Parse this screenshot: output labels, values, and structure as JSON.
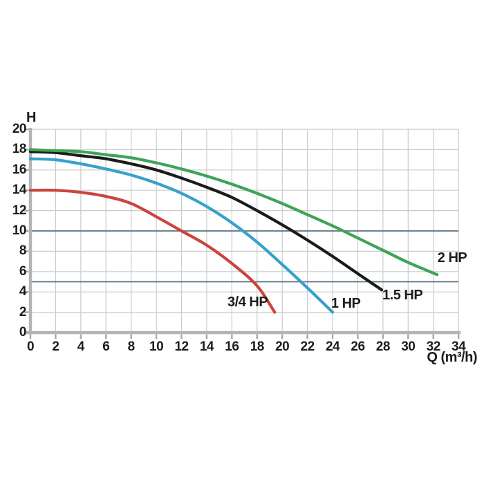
{
  "chart_data": {
    "type": "line",
    "x_axis": {
      "label": "Q (m³/h)",
      "min": 0,
      "max": 34,
      "tick_step": 2,
      "tick_labels": [
        "0",
        "2",
        "4",
        "6",
        "8",
        "10",
        "12",
        "14",
        "16",
        "18",
        "20",
        "22",
        "24",
        "26",
        "28",
        "30",
        "32",
        "34"
      ]
    },
    "y_axis": {
      "label": "H",
      "min": 0,
      "max": 20,
      "tick_step": 2,
      "tick_labels": [
        "0",
        "2",
        "4",
        "6",
        "8",
        "10",
        "12",
        "14",
        "16",
        "18",
        "20"
      ]
    },
    "grid": {
      "show": true,
      "step": 2
    },
    "reference_lines": [
      {
        "axis": "y",
        "value": 10
      },
      {
        "axis": "y",
        "value": 5
      }
    ],
    "legend": "inline-labels",
    "series": [
      {
        "name": "3/4 HP",
        "color": "#cb443d",
        "label_pos": {
          "q": 17.25,
          "h": 3.0
        },
        "points": [
          [
            0,
            14.0
          ],
          [
            2,
            14.0
          ],
          [
            4,
            13.8
          ],
          [
            6,
            13.4
          ],
          [
            8,
            12.7
          ],
          [
            10,
            11.4
          ],
          [
            12,
            10.0
          ],
          [
            14,
            8.6
          ],
          [
            16,
            6.8
          ],
          [
            18,
            4.6
          ],
          [
            19.4,
            2.0
          ]
        ]
      },
      {
        "name": "1 HP",
        "color": "#37a1cb",
        "label_pos": {
          "q": 25.05,
          "h": 2.85
        },
        "points": [
          [
            0,
            17.1
          ],
          [
            2,
            17.0
          ],
          [
            4,
            16.6
          ],
          [
            6,
            16.1
          ],
          [
            8,
            15.5
          ],
          [
            10,
            14.7
          ],
          [
            12,
            13.7
          ],
          [
            14,
            12.4
          ],
          [
            16,
            10.8
          ],
          [
            18,
            8.9
          ],
          [
            20,
            6.7
          ],
          [
            22,
            4.4
          ],
          [
            24,
            2.0
          ]
        ]
      },
      {
        "name": "1.5 HP",
        "color": "#1b1b1b",
        "label_pos": {
          "q": 29.55,
          "h": 3.7
        },
        "points": [
          [
            0,
            17.8
          ],
          [
            2,
            17.7
          ],
          [
            4,
            17.4
          ],
          [
            6,
            17.1
          ],
          [
            8,
            16.6
          ],
          [
            10,
            16.0
          ],
          [
            12,
            15.2
          ],
          [
            14,
            14.3
          ],
          [
            16,
            13.3
          ],
          [
            18,
            12.0
          ],
          [
            20,
            10.6
          ],
          [
            22,
            9.1
          ],
          [
            24,
            7.5
          ],
          [
            26,
            5.8
          ],
          [
            27.9,
            4.2
          ]
        ]
      },
      {
        "name": "2 HP",
        "color": "#3fa457",
        "label_pos": {
          "q": 33.5,
          "h": 7.35
        },
        "points": [
          [
            0,
            18.0
          ],
          [
            2,
            17.9
          ],
          [
            4,
            17.8
          ],
          [
            6,
            17.5
          ],
          [
            8,
            17.2
          ],
          [
            10,
            16.7
          ],
          [
            12,
            16.1
          ],
          [
            14,
            15.4
          ],
          [
            16,
            14.6
          ],
          [
            18,
            13.7
          ],
          [
            20,
            12.7
          ],
          [
            22,
            11.6
          ],
          [
            24,
            10.5
          ],
          [
            26,
            9.3
          ],
          [
            28,
            8.1
          ],
          [
            30,
            6.9
          ],
          [
            32.3,
            5.7
          ]
        ]
      }
    ],
    "colors": {
      "background": "#ffffff",
      "grid": "#c9cbcd",
      "axis": "#b2b5b7",
      "tick": "#a4a7a9",
      "reference_line": "#5a717f",
      "text": "#1d1d1b"
    }
  }
}
